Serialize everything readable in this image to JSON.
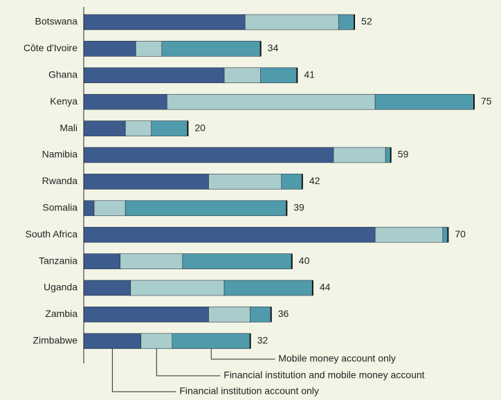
{
  "chart_data": {
    "type": "stacked-barh",
    "categories": [
      "Botswana",
      "Côte d'Ivoire",
      "Ghana",
      "Kenya",
      "Mali",
      "Namibia",
      "Rwanda",
      "Somalia",
      "South Africa",
      "Tanzania",
      "Uganda",
      "Zambia",
      "Zimbabwe"
    ],
    "series": [
      {
        "name": "Financial institution account only",
        "color": "#3d5b8c",
        "values": [
          31,
          10,
          27,
          16,
          8,
          48,
          24,
          2,
          56,
          7,
          9,
          24,
          11
        ]
      },
      {
        "name": "Financial institution and mobile money account",
        "color": "#a9cccc",
        "values": [
          18,
          5,
          7,
          40,
          5,
          10,
          14,
          6,
          13,
          12,
          18,
          8,
          6
        ]
      },
      {
        "name": "Mobile money account only",
        "color": "#4f9aab",
        "values": [
          3,
          19,
          7,
          19,
          7,
          1,
          4,
          31,
          1,
          21,
          17,
          4,
          15
        ]
      }
    ],
    "totals": [
      52,
      34,
      41,
      75,
      20,
      59,
      42,
      39,
      70,
      40,
      44,
      36,
      32
    ],
    "xlim": [
      0,
      75
    ]
  }
}
